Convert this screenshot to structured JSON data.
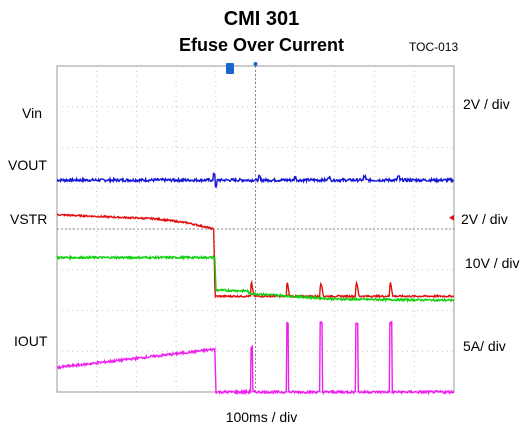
{
  "title": "CMI  301",
  "subtitle": "Efuse Over Current",
  "figure_code": "TOC-013",
  "chart_data": {
    "type": "line",
    "x_label": "100ms / div",
    "x_divisions": 10,
    "y_divisions": 8,
    "x_range": [
      0,
      1000
    ],
    "x_unit": "ms",
    "fault_time": 398,
    "channels": [
      {
        "name": "Vin",
        "scale": "2V / div",
        "color": "#1515d6",
        "level_div": 5.2,
        "note": "flat with small glitch at fault and periodic blips"
      },
      {
        "name": "VOUT",
        "scale": "",
        "color": "#e01010",
        "points": [
          [
            0,
            4.35
          ],
          [
            250,
            4.25
          ],
          [
            330,
            4.15
          ],
          [
            395,
            4.0
          ],
          [
            398,
            2.35
          ],
          [
            1000,
            2.35
          ]
        ]
      },
      {
        "name": "VSTR",
        "scale": "2V / div",
        "color": "#10d010",
        "points": [
          [
            0,
            3.3
          ],
          [
            398,
            3.3
          ],
          [
            400,
            2.5
          ],
          [
            480,
            2.48
          ],
          [
            485,
            2.42
          ],
          [
            700,
            2.28
          ],
          [
            1000,
            2.25
          ]
        ]
      },
      {
        "name": "IOUT",
        "scale": "5A / div",
        "color": "#ee20ee",
        "points": [
          [
            0,
            0.6
          ],
          [
            398,
            1.05
          ],
          [
            400,
            0.0
          ],
          [
            1000,
            0.0
          ]
        ]
      }
    ],
    "right_scales": [
      {
        "text": "2V / div"
      },
      {
        "text": "2V / div"
      },
      {
        "text": "10V / div"
      },
      {
        "text": "5A/ div"
      }
    ],
    "spike_times": [
      490,
      580,
      665,
      755,
      840
    ]
  }
}
